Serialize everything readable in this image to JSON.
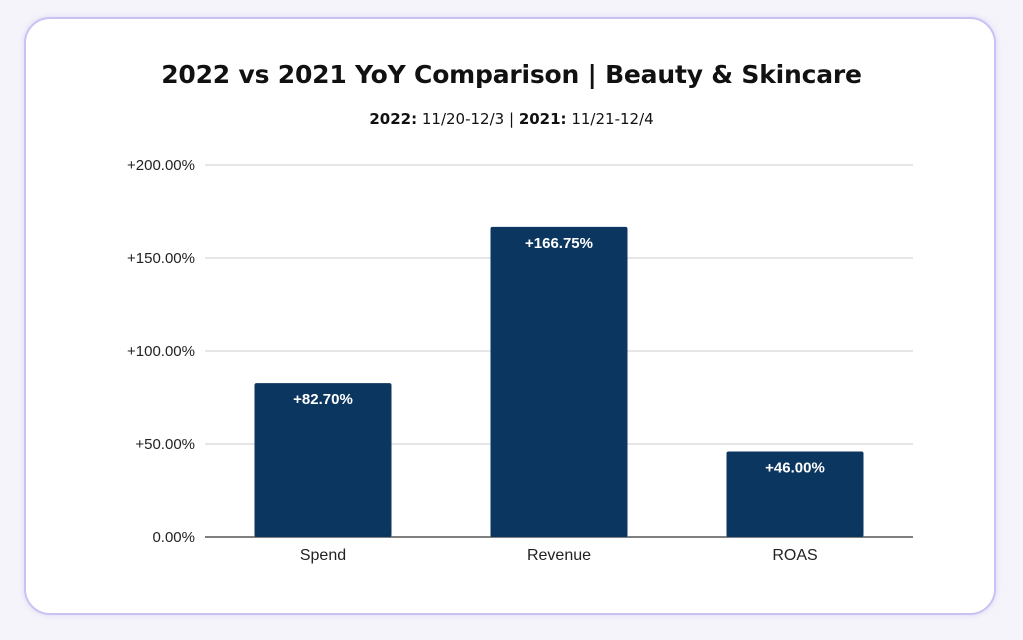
{
  "subtitle": {
    "label_2022": "2022:",
    "range_2022": "11/20-12/3",
    "separator": "|",
    "label_2021": "2021:",
    "range_2021": "11/21-12/4"
  },
  "colors": {
    "bar": "#0b365f",
    "grid": "#cccccc",
    "axis": "#333333",
    "card_border": "#c9c2f2"
  },
  "chart_data": {
    "type": "bar",
    "title": "2022 vs 2021 YoY Comparison | Beauty & Skincare",
    "categories": [
      "Spend",
      "Revenue",
      "ROAS"
    ],
    "values": [
      82.7,
      166.75,
      46.0
    ],
    "data_labels": [
      "+82.70%",
      "+166.75%",
      "+46.00%"
    ],
    "ylim": [
      0,
      200
    ],
    "yticks": [
      0,
      50,
      100,
      150,
      200
    ],
    "ytick_labels": [
      "0.00%",
      "+50.00%",
      "+100.00%",
      "+150.00%",
      "+200.00%"
    ],
    "xlabel": "",
    "ylabel": "",
    "grid": true,
    "legend": "none"
  }
}
